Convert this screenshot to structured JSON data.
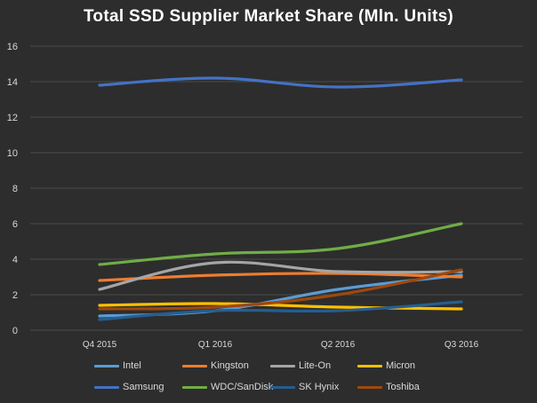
{
  "chart_data": {
    "type": "line",
    "title": "Total SSD Supplier Market Share (Mln. Units)",
    "xlabel": "",
    "ylabel": "",
    "categories": [
      "Q4 2015",
      "Q1 2016",
      "Q2 2016",
      "Q3 2016"
    ],
    "ylim": [
      0,
      16
    ],
    "yticks": [
      0,
      2,
      4,
      6,
      8,
      10,
      12,
      14,
      16
    ],
    "grid": true,
    "legend_position": "bottom",
    "series": [
      {
        "name": "Intel",
        "color": "#5b9bd5",
        "values": [
          0.8,
          1.1,
          2.3,
          3.1
        ]
      },
      {
        "name": "Kingston",
        "color": "#ed7d31",
        "values": [
          2.8,
          3.1,
          3.2,
          3.0
        ]
      },
      {
        "name": "Lite-On",
        "color": "#a5a5a5",
        "values": [
          2.3,
          3.8,
          3.3,
          3.3
        ]
      },
      {
        "name": "Micron",
        "color": "#ffc000",
        "values": [
          1.4,
          1.5,
          1.3,
          1.2
        ]
      },
      {
        "name": "Samsung",
        "color": "#4472c4",
        "values": [
          13.8,
          14.2,
          13.7,
          14.1
        ]
      },
      {
        "name": "WDC/SanDisk",
        "color": "#70ad47",
        "values": [
          3.7,
          4.3,
          4.6,
          6.0
        ]
      },
      {
        "name": "SK Hynix",
        "color": "#255e91",
        "values": [
          0.6,
          1.1,
          1.1,
          1.6
        ]
      },
      {
        "name": "Toshiba",
        "color": "#9e480e",
        "values": [
          1.2,
          1.3,
          2.0,
          3.4
        ]
      }
    ]
  },
  "colors": {
    "background": "#2d2d2d",
    "gridline": "#4a4a4a",
    "axis_text": "#d9d9d9",
    "title_text": "#ffffff"
  }
}
